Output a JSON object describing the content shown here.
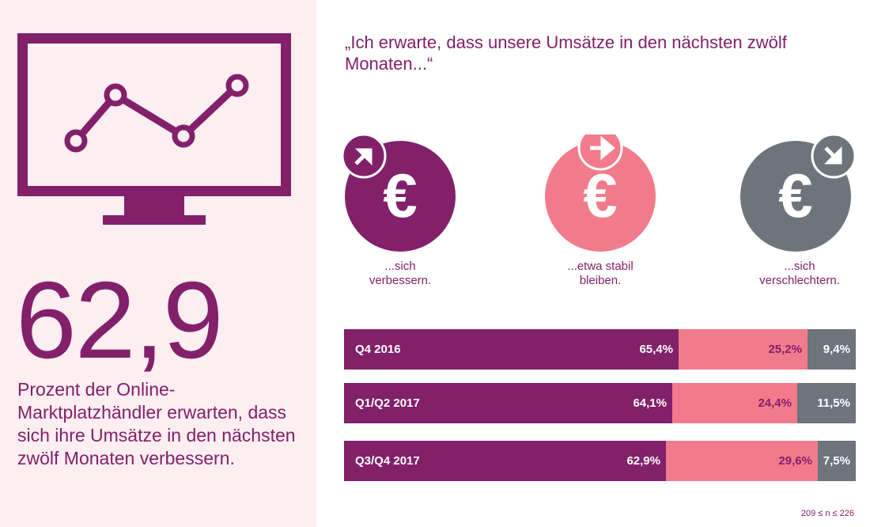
{
  "colors": {
    "improve": "#82206a",
    "stable": "#f27b8b",
    "worse": "#6e747b",
    "panel": "#fdeef1"
  },
  "left": {
    "big_number": "62,9",
    "caption": "Prozent der Online-Marktplatzhändler erwarten, dass sich ihre Umsätze in den nächsten zwölf Monaten verbessern."
  },
  "headline": "„Ich erwarte, dass unsere Umsätze in den nächsten zwölf Monaten...“",
  "categories": [
    {
      "label": "...sich verbessern.",
      "icon": "euro-arrow-up-right-icon"
    },
    {
      "label": "...etwa stabil bleiben.",
      "icon": "euro-arrow-right-icon"
    },
    {
      "label": "...sich verschlechtern.",
      "icon": "euro-arrow-down-right-icon"
    }
  ],
  "chart_data": {
    "type": "bar",
    "stacked": true,
    "orientation": "horizontal",
    "categories": [
      "Q4 2016",
      "Q1/Q2 2017",
      "Q3/Q4 2017"
    ],
    "series": [
      {
        "name": "...sich verbessern.",
        "values": [
          65.4,
          64.1,
          62.9
        ],
        "labels": [
          "65,4%",
          "64,1%",
          "62,9%"
        ]
      },
      {
        "name": "...etwa stabil bleiben.",
        "values": [
          25.2,
          24.4,
          29.6
        ],
        "labels": [
          "25,2%",
          "24,4%",
          "29,6%"
        ]
      },
      {
        "name": "...sich verschlechtern.",
        "values": [
          9.4,
          11.5,
          7.5
        ],
        "labels": [
          "9,4%",
          "11,5%",
          "7,5%"
        ]
      }
    ]
  },
  "footnote": "209 ≤ n ≤ 226"
}
